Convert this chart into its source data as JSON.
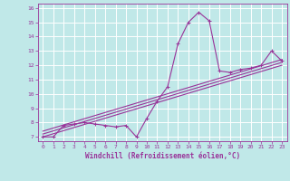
{
  "xlabel": "Windchill (Refroidissement éolien,°C)",
  "ylabel": "",
  "background_color": "#c0e8e8",
  "grid_color": "#ffffff",
  "line_color": "#993399",
  "xlim": [
    -0.5,
    23.5
  ],
  "ylim": [
    6.7,
    16.3
  ],
  "xticks": [
    0,
    1,
    2,
    3,
    4,
    5,
    6,
    7,
    8,
    9,
    10,
    11,
    12,
    13,
    14,
    15,
    16,
    17,
    18,
    19,
    20,
    21,
    22,
    23
  ],
  "yticks": [
    7,
    8,
    9,
    10,
    11,
    12,
    13,
    14,
    15,
    16
  ],
  "line1_x": [
    0,
    1,
    2,
    3,
    4,
    5,
    6,
    7,
    8,
    9,
    10,
    11,
    12,
    13,
    14,
    15,
    16,
    17,
    18,
    19,
    20,
    21,
    22,
    23
  ],
  "line1_y": [
    7.0,
    7.0,
    7.8,
    7.9,
    8.0,
    7.9,
    7.8,
    7.7,
    7.8,
    7.0,
    8.3,
    9.5,
    10.5,
    13.5,
    15.0,
    15.7,
    15.1,
    11.6,
    11.5,
    11.7,
    11.8,
    12.0,
    13.0,
    12.3
  ],
  "line2_x": [
    0,
    23
  ],
  "line2_y": [
    7.0,
    12.0
  ],
  "line3_x": [
    0,
    23
  ],
  "line3_y": [
    7.2,
    12.2
  ],
  "line4_x": [
    0,
    23
  ],
  "line4_y": [
    7.4,
    12.4
  ]
}
